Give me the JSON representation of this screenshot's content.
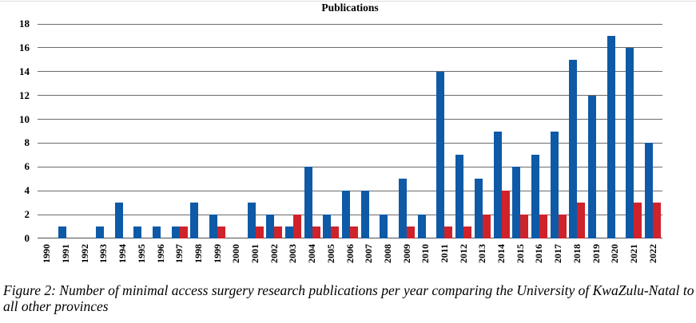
{
  "chart_data": {
    "type": "bar",
    "title": "Publications",
    "categories": [
      "1990",
      "1991",
      "1992",
      "1993",
      "1994",
      "1995",
      "1996",
      "1997",
      "1998",
      "1999",
      "2000",
      "2001",
      "2002",
      "2003",
      "2004",
      "2005",
      "2006",
      "2007",
      "2008",
      "2009",
      "2010",
      "2011",
      "2012",
      "2013",
      "2014",
      "2015",
      "2016",
      "2017",
      "2018",
      "2019",
      "2020",
      "2021",
      "2022"
    ],
    "series": [
      {
        "name": "University of KwaZulu-Natal",
        "color": "#0e5aa7",
        "values": [
          0,
          1,
          0,
          1,
          3,
          1,
          1,
          1,
          3,
          2,
          0,
          3,
          2,
          1,
          6,
          2,
          4,
          4,
          2,
          5,
          2,
          14,
          7,
          5,
          9,
          6,
          7,
          9,
          15,
          12,
          17,
          16,
          8
        ]
      },
      {
        "name": "All other provinces",
        "color": "#cf232b",
        "values": [
          0,
          0,
          0,
          0,
          0,
          0,
          0,
          1,
          0,
          1,
          0,
          1,
          1,
          2,
          1,
          1,
          1,
          0,
          0,
          1,
          0,
          1,
          1,
          2,
          4,
          2,
          2,
          2,
          3,
          0,
          0,
          3,
          3
        ]
      }
    ],
    "xlabel": "",
    "ylabel": "",
    "ylim": [
      0,
      18
    ],
    "yticks": [
      0,
      2,
      4,
      6,
      8,
      10,
      12,
      14,
      16,
      18
    ],
    "grid": true,
    "legend_position": "none",
    "gridline_color": "#6b6b6b"
  },
  "caption": {
    "line1": "Figure 2: Number of minimal access surgery research publications per year comparing the University of KwaZulu-Natal to",
    "line2": "all other provinces"
  }
}
